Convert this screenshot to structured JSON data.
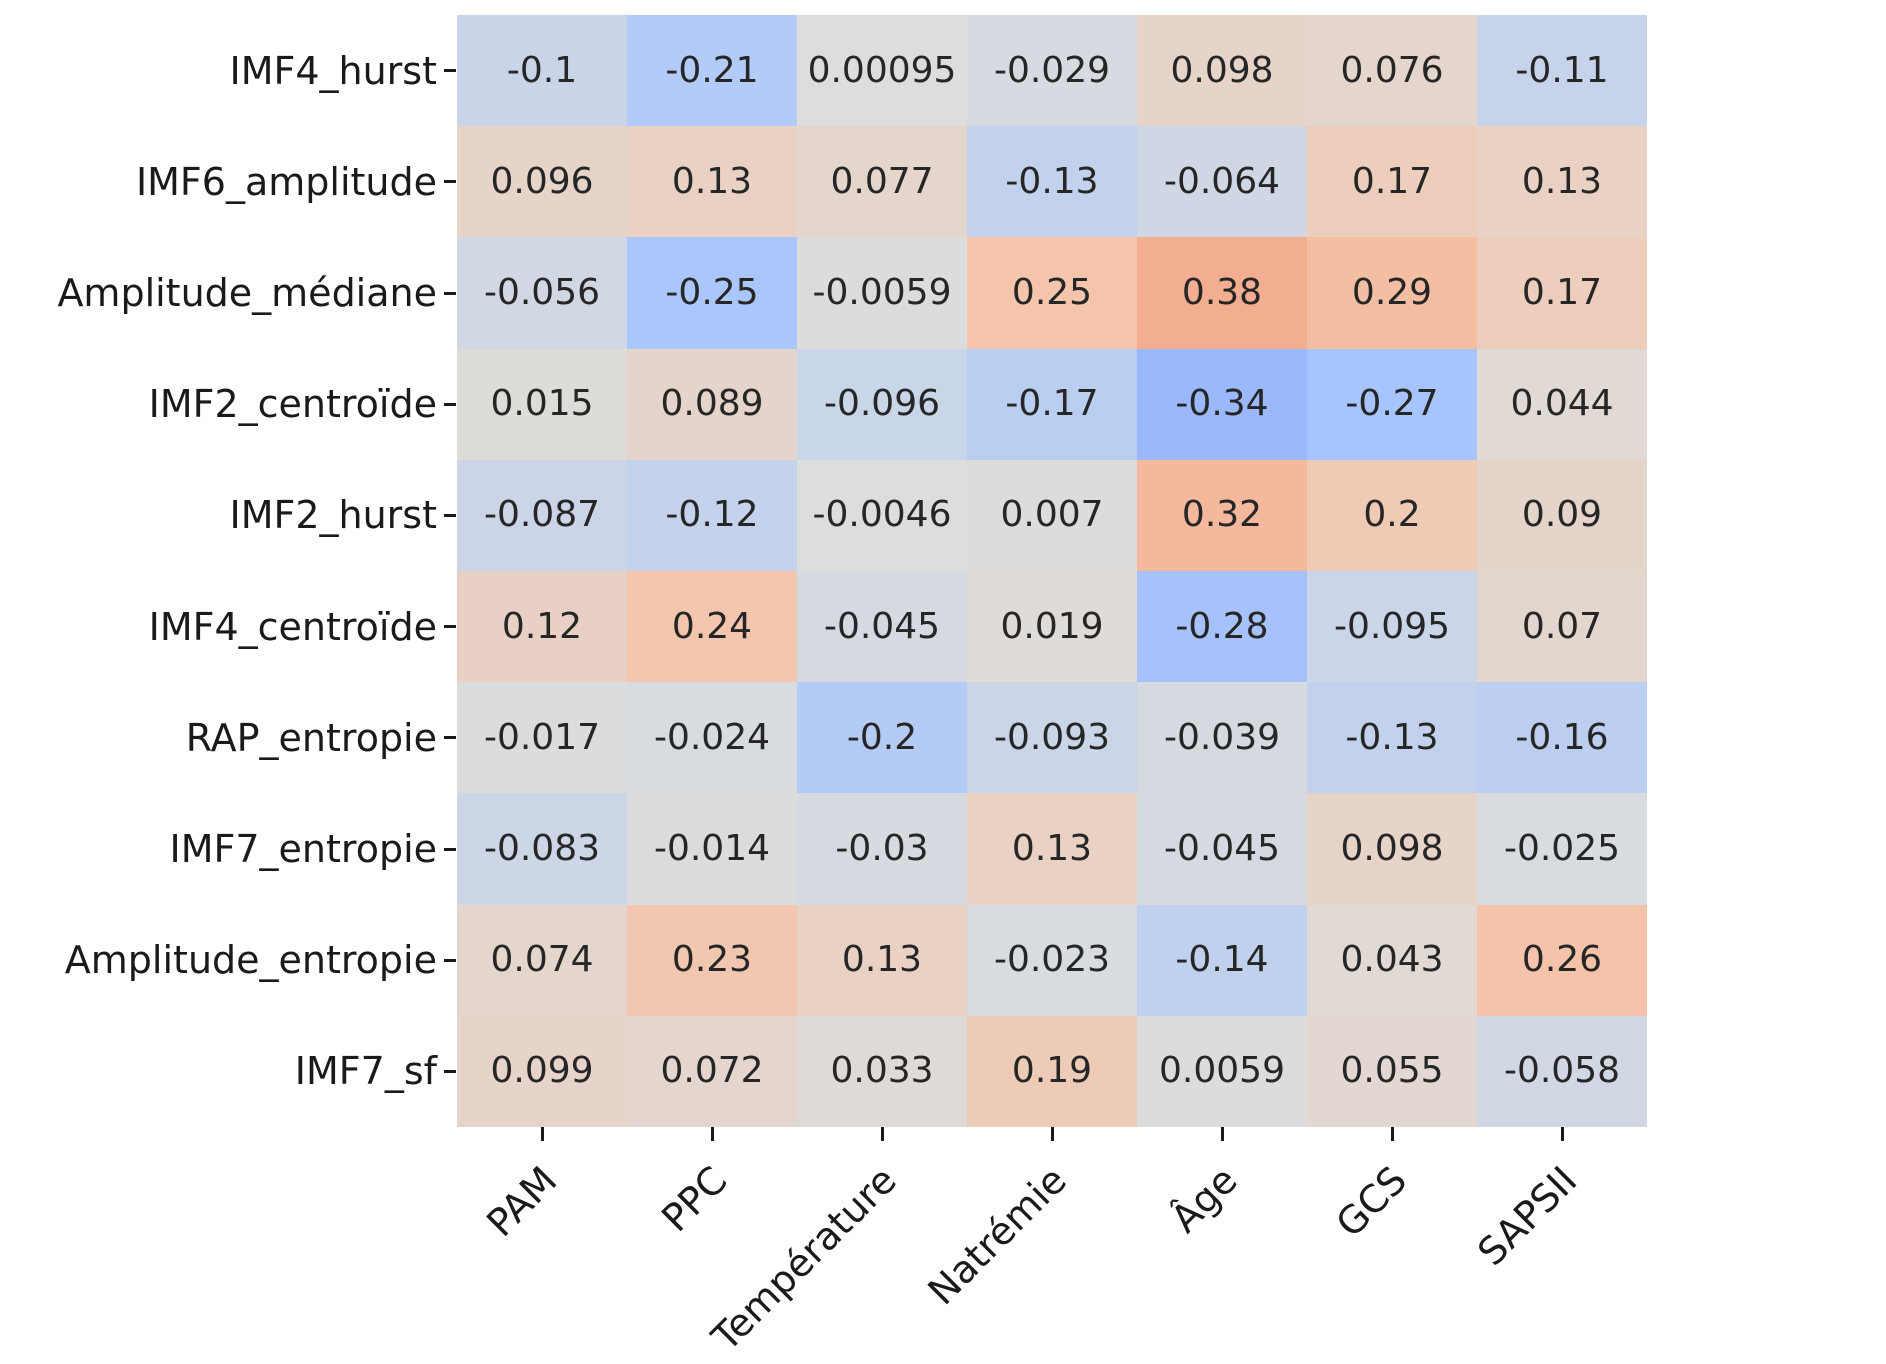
{
  "figure": {
    "background": "#ffffff",
    "tick_color": "#1a1a1a",
    "annotation_color": "#262626"
  },
  "chart_data": {
    "type": "heatmap",
    "title": "",
    "xlabel": "",
    "ylabel": "",
    "legend": "none",
    "grid": false,
    "x_tick_labels": [
      "PAM",
      "PPC",
      "Température",
      "Natrémie",
      "Âge",
      "GCS",
      "SAPSII"
    ],
    "y_tick_labels": [
      "IMF4_hurst",
      "IMF6_amplitude",
      "Amplitude_médiane",
      "IMF2_centroïde",
      "IMF2_hurst",
      "IMF4_centroïde",
      "RAP_entropie",
      "IMF7_entropie",
      "Amplitude_entropie",
      "IMF7_sf"
    ],
    "x_label_rotation_deg": 45,
    "values": [
      [
        -0.1,
        -0.21,
        0.00095,
        -0.029,
        0.098,
        0.076,
        -0.11
      ],
      [
        0.096,
        0.13,
        0.077,
        -0.13,
        -0.064,
        0.17,
        0.13
      ],
      [
        -0.056,
        -0.25,
        -0.0059,
        0.25,
        0.38,
        0.29,
        0.17
      ],
      [
        0.015,
        0.089,
        -0.096,
        -0.17,
        -0.34,
        -0.27,
        0.044
      ],
      [
        -0.087,
        -0.12,
        -0.0046,
        0.007,
        0.32,
        0.2,
        0.09
      ],
      [
        0.12,
        0.24,
        -0.045,
        0.019,
        -0.28,
        -0.095,
        0.07
      ],
      [
        -0.017,
        -0.024,
        -0.2,
        -0.093,
        -0.039,
        -0.13,
        -0.16
      ],
      [
        -0.083,
        -0.014,
        -0.03,
        0.13,
        -0.045,
        0.098,
        -0.025
      ],
      [
        0.074,
        0.23,
        0.13,
        -0.023,
        -0.14,
        0.043,
        0.26
      ],
      [
        0.099,
        0.072,
        0.033,
        0.19,
        0.0059,
        0.055,
        -0.058
      ]
    ],
    "cell_text": [
      [
        "-0.1",
        "-0.21",
        "0.00095",
        "-0.029",
        "0.098",
        "0.076",
        "-0.11"
      ],
      [
        "0.096",
        "0.13",
        "0.077",
        "-0.13",
        "-0.064",
        "0.17",
        "0.13"
      ],
      [
        "-0.056",
        "-0.25",
        "-0.0059",
        "0.25",
        "0.38",
        "0.29",
        "0.17"
      ],
      [
        "0.015",
        "0.089",
        "-0.096",
        "-0.17",
        "-0.34",
        "-0.27",
        "0.044"
      ],
      [
        "-0.087",
        "-0.12",
        "-0.0046",
        "0.007",
        "0.32",
        "0.2",
        "0.09"
      ],
      [
        "0.12",
        "0.24",
        "-0.045",
        "0.019",
        "-0.28",
        "-0.095",
        "0.07"
      ],
      [
        "-0.017",
        "-0.024",
        "-0.2",
        "-0.093",
        "-0.039",
        "-0.13",
        "-0.16"
      ],
      [
        "-0.083",
        "-0.014",
        "-0.03",
        "0.13",
        "-0.045",
        "0.098",
        "-0.025"
      ],
      [
        "0.074",
        "0.23",
        "0.13",
        "-0.023",
        "-0.14",
        "0.043",
        "0.26"
      ],
      [
        "0.099",
        "0.072",
        "0.033",
        "0.19",
        "0.0059",
        "0.055",
        "-0.058"
      ]
    ],
    "vmin": -1,
    "vmax": 1,
    "colormap": {
      "name": "coolwarm",
      "stops": [
        {
          "t": 0.0,
          "color": "#3a4cc0"
        },
        {
          "t": 0.125,
          "color": "#5977e3"
        },
        {
          "t": 0.25,
          "color": "#7d9ef8"
        },
        {
          "t": 0.375,
          "color": "#aac7fd"
        },
        {
          "t": 0.5,
          "color": "#dddddc"
        },
        {
          "t": 0.625,
          "color": "#f4c5ab"
        },
        {
          "t": 0.75,
          "color": "#f39778"
        },
        {
          "t": 0.875,
          "color": "#d75445"
        },
        {
          "t": 1.0,
          "color": "#b40426"
        }
      ]
    }
  }
}
